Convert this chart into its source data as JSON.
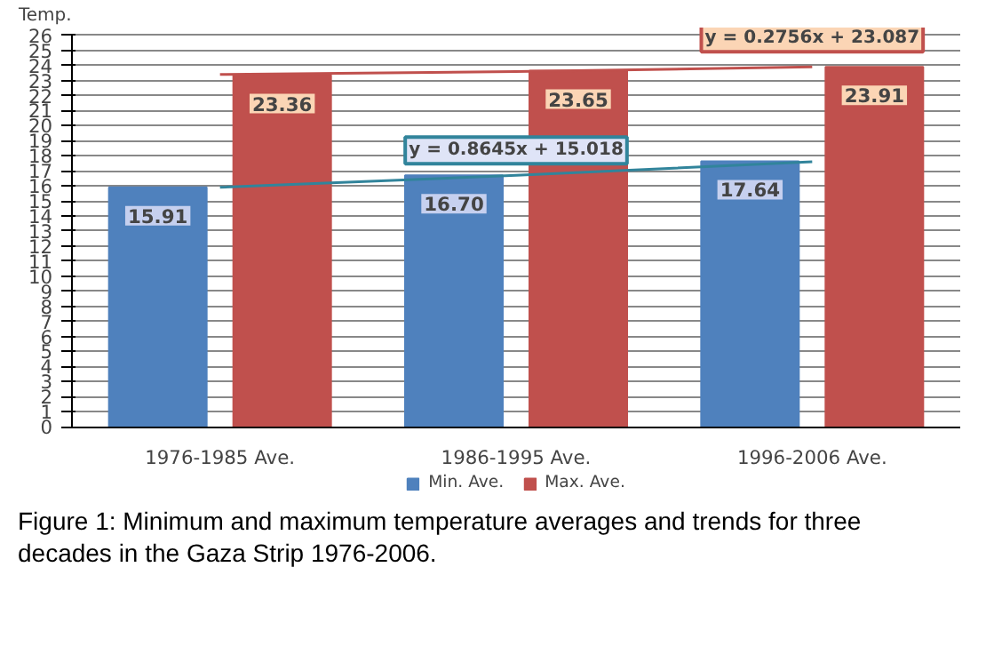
{
  "chart_data": {
    "type": "bar",
    "ylabel": "Temp.",
    "categories": [
      "1976-1985 Ave.",
      "1986-1995 Ave.",
      "1996-2006 Ave."
    ],
    "series": [
      {
        "name": "Min. Ave.",
        "color": "#4f81bd",
        "values": [
          15.91,
          16.7,
          17.64
        ],
        "value_labels": [
          "15.91",
          "16.70",
          "17.64"
        ]
      },
      {
        "name": "Max. Ave.",
        "color": "#c0504d",
        "values": [
          23.36,
          23.65,
          23.91
        ],
        "value_labels": [
          "23.36",
          "23.65",
          "23.91"
        ]
      },
      {
        "type": "line",
        "color": "#31849b",
        "values": [
          15.9,
          16.7,
          17.6
        ]
      },
      {
        "type": "line",
        "color": "#c0504d",
        "values": [
          23.4,
          23.6,
          23.9
        ]
      }
    ],
    "ylim": [
      0,
      26
    ],
    "yticks": [
      0,
      1,
      2,
      3,
      4,
      5,
      6,
      7,
      8,
      9,
      10,
      11,
      12,
      13,
      14,
      15,
      16,
      17,
      18,
      19,
      20,
      21,
      22,
      23,
      24,
      25,
      26
    ],
    "grid": "y",
    "legend": "bottom",
    "annotations": [
      "y = 0.8645x + 15.018",
      "y = 0.2756x + 23.087",
      "Figure 1: Minimum and maximum temperature averages and trends for three decades in the Gaza Strip 1976-2006."
    ]
  }
}
